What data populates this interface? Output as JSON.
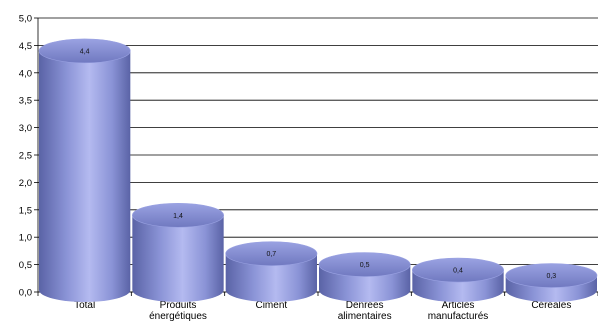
{
  "chart_data": {
    "type": "bar",
    "style": "3d-cylinder",
    "categories": [
      [
        "Total"
      ],
      [
        "Produits",
        "énergétiques"
      ],
      [
        "Ciment"
      ],
      [
        "Denrées",
        "alimentaires"
      ],
      [
        "Articles",
        "manufacturés"
      ],
      [
        "Céréales"
      ]
    ],
    "values": [
      4.4,
      1.4,
      0.7,
      0.5,
      0.4,
      0.3
    ],
    "data_labels": [
      "4,4",
      "1,4",
      "0,7",
      "0,5",
      "0,4",
      "0,3"
    ],
    "y_ticks": [
      "0,0",
      "0,5",
      "1,0",
      "1,5",
      "2,0",
      "2,5",
      "3,0",
      "3,5",
      "4,0",
      "4,5",
      "5,0"
    ],
    "ylim": [
      0,
      5
    ],
    "grid": true,
    "legend": "none",
    "colors": {
      "bar_dark": "#5a63a6",
      "bar_mid": "#8a93d6",
      "bar_light": "#b4baf0",
      "top_fill": "#7f88cc",
      "top_stroke": "#9aa2e2",
      "grid": "#000000"
    }
  }
}
